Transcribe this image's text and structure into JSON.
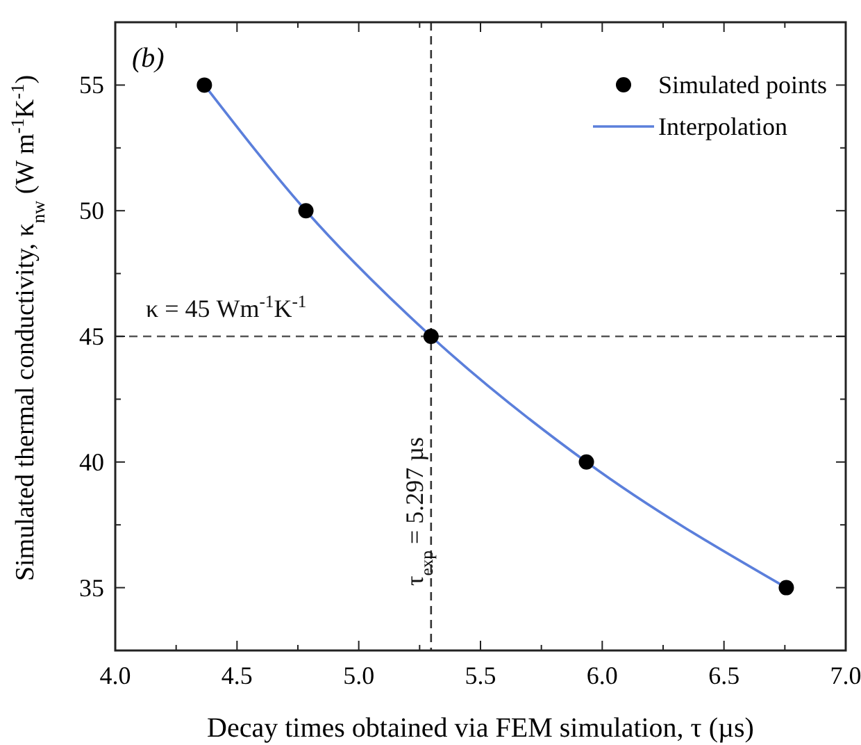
{
  "chart_data": {
    "type": "scatter",
    "xlabel": "Decay times obtained via FEM simulation, τ (µs)",
    "ylabel": "Simulated thermal conductivity, κ$_{nw}$ (W m$^{-1}$K$^{-1}$)",
    "xlim": [
      4.0,
      7.0
    ],
    "ylim": [
      32.5,
      57.5
    ],
    "xticks": [
      {
        "value": 4,
        "label": "4.0"
      },
      {
        "value": 4.25,
        "label": null
      },
      4.5,
      {
        "value": 4.75,
        "label": null
      },
      {
        "value": 5,
        "label": "5.0"
      },
      {
        "value": 5.25,
        "label": null
      },
      5.5,
      {
        "value": 5.75,
        "label": null
      },
      {
        "value": 6,
        "label": "6.0"
      },
      {
        "value": 6.25,
        "label": null
      },
      6.5,
      {
        "value": 6.75,
        "label": null
      },
      {
        "value": 7,
        "label": "7.0"
      }
    ],
    "yticks": [
      35,
      {
        "value": 37.5,
        "label": null
      },
      40,
      {
        "value": 42.5,
        "label": null
      },
      45,
      {
        "value": 47.5,
        "label": null
      },
      50,
      {
        "value": 52.5,
        "label": null
      },
      55
    ],
    "series": [
      {
        "name": "Simulated points",
        "marker": "circle",
        "color": "#000000",
        "x": [
          4.366,
          4.783,
          5.297,
          5.935,
          6.756
        ],
        "values": [
          55,
          50,
          45,
          40,
          35
        ]
      },
      {
        "name": "Interpolation",
        "type": "line",
        "color": "#5b7fdb",
        "x": [
          4.366,
          4.783,
          5.297,
          5.935,
          6.756
        ],
        "values": [
          55,
          50,
          45,
          40,
          35
        ]
      }
    ],
    "ref_lines": [
      {
        "axis": "x",
        "value": 5.297,
        "label": "τ$_{exp}$ = 5.297 µs",
        "line_style": "dashed",
        "color": "#333333"
      },
      {
        "axis": "y",
        "value": 45,
        "label": "κ = 45 Wm$^{-1}$K$^{-1}$",
        "line_style": "dashed",
        "color": "#555555"
      }
    ],
    "annotations": [
      "(b)"
    ],
    "legend": "top right",
    "grid": false
  }
}
